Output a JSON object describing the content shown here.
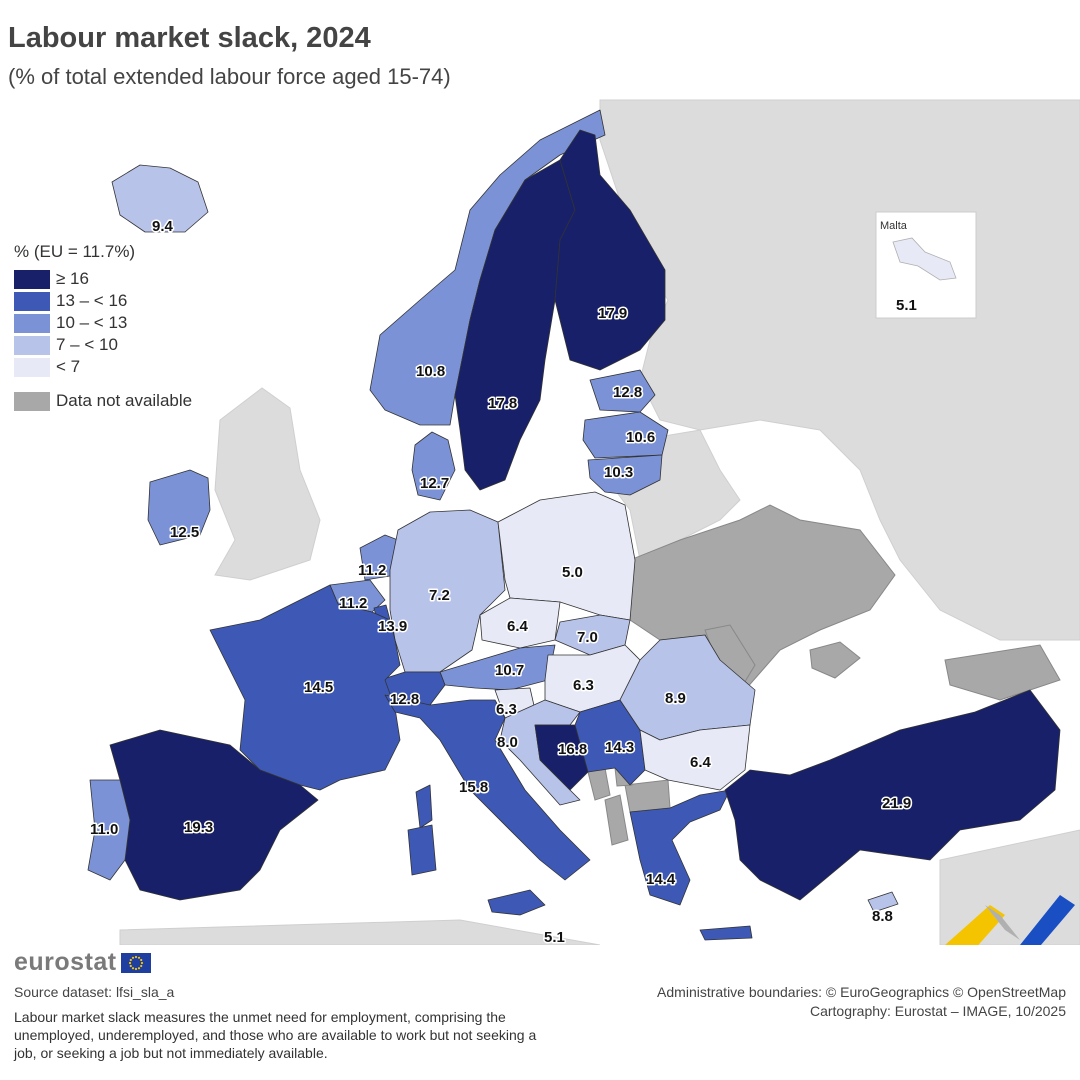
{
  "title": "Labour market slack, 2024",
  "subtitle": "(% of total extended labour force aged 15-74)",
  "legend": {
    "title": "% (EU = 11.7%)",
    "classes": [
      {
        "label": "≥ 16",
        "color": "#172068"
      },
      {
        "label": "13 – < 16",
        "color": "#3d59b5"
      },
      {
        "label": "10 – < 13",
        "color": "#7b93d6"
      },
      {
        "label": "7 – < 10",
        "color": "#b8c3ea"
      },
      {
        "label": "< 7",
        "color": "#e7eaf6"
      }
    ],
    "not_available": {
      "label": "Data not available",
      "color": "#a8a8a8"
    }
  },
  "map_data": {
    "values": {
      "Iceland": "9.4",
      "Norway": "10.8",
      "Sweden": "17.8",
      "Finland": "17.9",
      "Estonia": "12.8",
      "Latvia": "10.6",
      "Lithuania": "10.3",
      "Denmark": "12.7",
      "Ireland": "12.5",
      "Netherlands": "11.2",
      "Belgium": "11.2",
      "Luxembourg": "13.9",
      "Germany": "7.2",
      "Poland": "5.0",
      "Czechia": "6.4",
      "Slovakia": "7.0",
      "Austria": "10.7",
      "Hungary": "6.3",
      "Slovenia": "6.3",
      "Croatia": "8.0",
      "Bosnia and Herzegovina": "16.8",
      "Serbia": "14.3",
      "Romania": "8.9",
      "Bulgaria": "6.4",
      "Switzerland": "12.8",
      "France": "14.5",
      "Spain": "19.3",
      "Portugal": "11.0",
      "Italy": "15.8",
      "Greece": "14.4",
      "Türkiye": "21.9",
      "Cyprus": "8.8",
      "Malta": "5.1"
    },
    "malta_inset_title": "Malta",
    "malta_inset_value": "5.1"
  },
  "colors": {
    "class_ge16": "#172068",
    "class_13_16": "#3d59b5",
    "class_10_13": "#7b93d6",
    "class_7_10": "#b8c3ea",
    "class_lt7": "#e7eaf6",
    "not_available": "#a8a8a8",
    "non_reporting": "#dcdcdc",
    "sea": "#ffffff"
  },
  "logo_text": "eurostat",
  "source": "Source dataset: lfsi_sla_a",
  "note": "Labour market slack measures the unmet need for employment, comprising the unemployed, underemployed, and those who are available to work but not seeking a job, or seeking a job but not immediately available.",
  "credits": {
    "line1": "Administrative boundaries: © EuroGeographics © OpenStreetMap",
    "line2": "Cartography: Eurostat – IMAGE, 10/2025"
  }
}
